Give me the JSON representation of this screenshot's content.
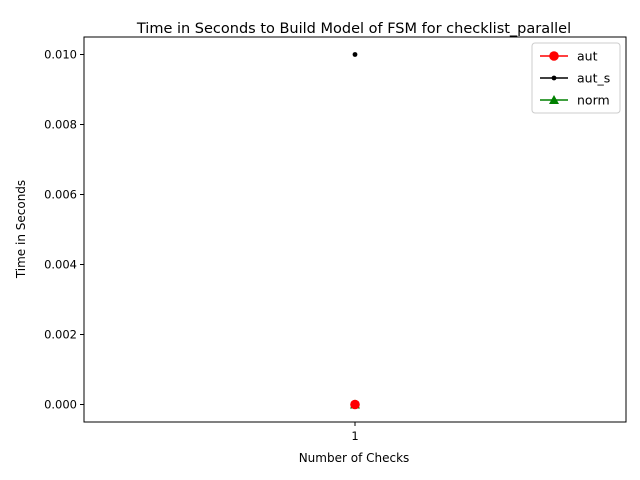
{
  "chart_data": {
    "type": "line",
    "title": "Time in Seconds to Build Model of FSM for checklist_parallel",
    "xlabel": "Number of Checks",
    "ylabel": "Time in Seconds",
    "x": [
      1
    ],
    "x_tick_labels": [
      "1"
    ],
    "xlim": [
      0.945,
      1.055
    ],
    "ylim": [
      -0.0005,
      0.0105
    ],
    "y_ticks": [
      0.0,
      0.002,
      0.004,
      0.006,
      0.008,
      0.01
    ],
    "y_tick_labels": [
      "0.000",
      "0.002",
      "0.004",
      "0.006",
      "0.008",
      "0.010"
    ],
    "grid": false,
    "legend_position": "top-right",
    "series": [
      {
        "name": "aut",
        "values": [
          0.0
        ],
        "color": "#ff0000",
        "marker": "circle"
      },
      {
        "name": "aut_s",
        "values": [
          0.01
        ],
        "color": "#000000",
        "marker": "point"
      },
      {
        "name": "norm",
        "values": [
          0.0
        ],
        "color": "#008000",
        "marker": "triangle"
      }
    ]
  }
}
